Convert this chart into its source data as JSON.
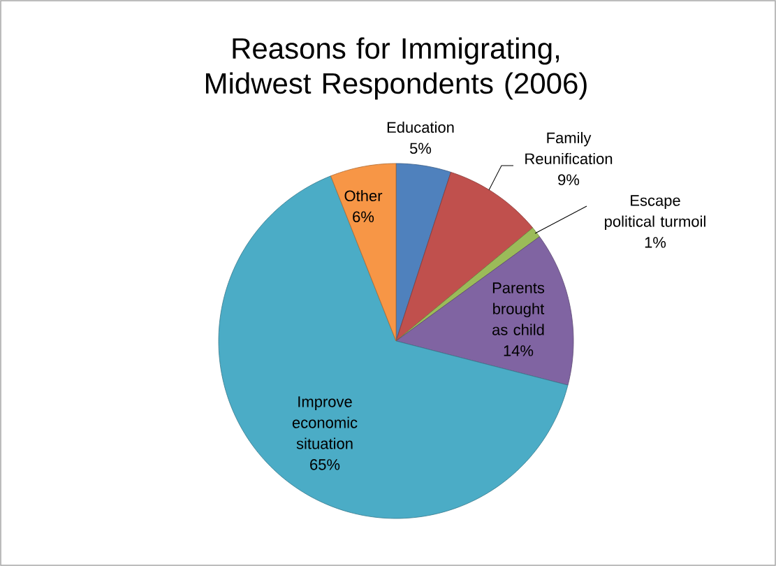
{
  "chart_data": {
    "type": "pie",
    "title": "Reasons for Immigrating, Midwest Respondents (2006)",
    "categories": [
      "Education",
      "Family Reunification",
      "Escape political turmoil",
      "Parents brought as child",
      "Improve economic situation",
      "Other"
    ],
    "values": [
      5,
      9,
      1,
      14,
      65,
      6
    ],
    "value_labels": [
      "5%",
      "9%",
      "1%",
      "14%",
      "65%",
      "6%"
    ],
    "colors": [
      "#4f81bd",
      "#c0504d",
      "#9bbb59",
      "#8064a2",
      "#4bacc6",
      "#f79646"
    ]
  }
}
